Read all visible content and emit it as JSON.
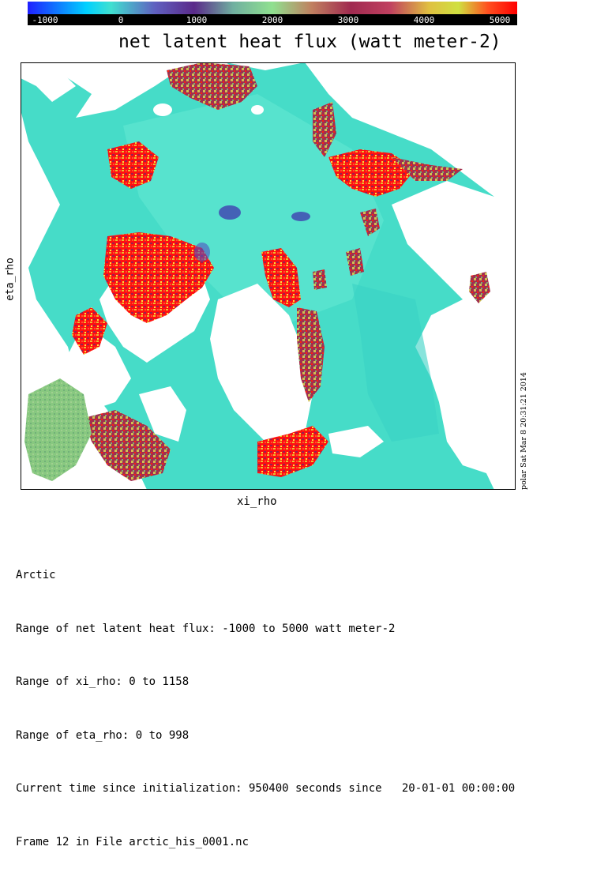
{
  "chart_data": {
    "type": "heatmap",
    "title": "net latent heat flux (watt meter-2)",
    "xlabel": "xi_rho",
    "ylabel": "eta_rho",
    "colorbar": {
      "ticks": [
        "-1000",
        "0",
        "1000",
        "2000",
        "3000",
        "4000",
        "5000"
      ],
      "range": [
        -1000,
        5000
      ],
      "colors": [
        "#1010ff",
        "#00bfff",
        "#40e0d0",
        "#4b0082",
        "#90ee90",
        "#a52a2a",
        "#ffd700",
        "#ff0000"
      ]
    },
    "xlim": [
      0,
      1158
    ],
    "ylim": [
      0,
      998
    ],
    "ocean_color": "#40e0c8",
    "land_color": "#ffffff"
  },
  "info": {
    "lines": [
      "Arctic",
      "Range of net latent heat flux: -1000 to 5000 watt meter-2",
      "Range of xi_rho: 0 to 1158",
      "Range of eta_rho: 0 to 998",
      "Current time since initialization: 950400 seconds since   20-01-01 00:00:00",
      "Frame 12 in File arctic_his_0001.nc"
    ]
  },
  "stamp": "polar Sat Mar  8 20:31:21 2014"
}
